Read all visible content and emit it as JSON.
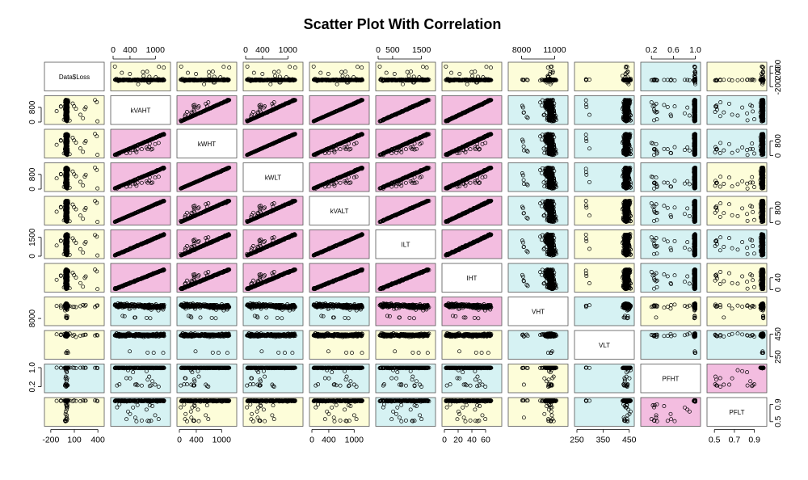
{
  "chart_data": {
    "type": "scatter",
    "title": "Scatter Plot With Correlation",
    "variables": [
      "Data$Loss",
      "kVAHT",
      "kWHT",
      "kWLT",
      "kVALT",
      "ILT",
      "IHT",
      "VHT",
      "VLT",
      "PFHT",
      "PFLT"
    ],
    "ranges": [
      [
        -250,
        450
      ],
      [
        0,
        1300
      ],
      [
        0,
        1300
      ],
      [
        0,
        1300
      ],
      [
        0,
        1300
      ],
      [
        0,
        1900
      ],
      [
        0,
        80
      ],
      [
        7000,
        12000
      ],
      [
        250,
        460
      ],
      [
        0.05,
        1.05
      ],
      [
        0.45,
        1.0
      ]
    ],
    "panel_colors": {
      "pink": "#f3bde0",
      "cyan": "#d6f2f3",
      "yellow": "#fdfdd9",
      "diag": "#ffffff"
    },
    "panel_fill": [
      [
        "diag",
        "yellow",
        "yellow",
        "yellow",
        "yellow",
        "yellow",
        "yellow",
        "yellow",
        "yellow",
        "cyan",
        "yellow"
      ],
      [
        "yellow",
        "diag",
        "pink",
        "pink",
        "pink",
        "pink",
        "pink",
        "cyan",
        "cyan",
        "cyan",
        "cyan"
      ],
      [
        "yellow",
        "pink",
        "diag",
        "pink",
        "pink",
        "pink",
        "pink",
        "cyan",
        "cyan",
        "cyan",
        "cyan"
      ],
      [
        "yellow",
        "pink",
        "pink",
        "diag",
        "pink",
        "pink",
        "pink",
        "cyan",
        "cyan",
        "cyan",
        "yellow"
      ],
      [
        "yellow",
        "pink",
        "pink",
        "pink",
        "diag",
        "pink",
        "pink",
        "cyan",
        "yellow",
        "cyan",
        "yellow"
      ],
      [
        "yellow",
        "pink",
        "pink",
        "pink",
        "pink",
        "diag",
        "pink",
        "cyan",
        "yellow",
        "cyan",
        "cyan"
      ],
      [
        "yellow",
        "pink",
        "pink",
        "pink",
        "pink",
        "pink",
        "diag",
        "cyan",
        "yellow",
        "cyan",
        "yellow"
      ],
      [
        "yellow",
        "cyan",
        "cyan",
        "cyan",
        "cyan",
        "pink",
        "pink",
        "diag",
        "cyan",
        "yellow",
        "yellow"
      ],
      [
        "yellow",
        "cyan",
        "cyan",
        "cyan",
        "yellow",
        "yellow",
        "yellow",
        "cyan",
        "diag",
        "cyan",
        "cyan"
      ],
      [
        "cyan",
        "cyan",
        "cyan",
        "cyan",
        "cyan",
        "cyan",
        "cyan",
        "yellow",
        "cyan",
        "diag",
        "pink"
      ],
      [
        "yellow",
        "cyan",
        "yellow",
        "yellow",
        "yellow",
        "cyan",
        "yellow",
        "yellow",
        "cyan",
        "pink",
        "diag"
      ]
    ],
    "top_axis": [
      {
        "column": 1,
        "ticks": [
          0,
          400,
          1000
        ],
        "labels": [
          "0",
          "400",
          "1000"
        ]
      },
      {
        "column": 3,
        "ticks": [
          0,
          400,
          1000
        ],
        "labels": [
          "0",
          "400",
          "1000"
        ]
      },
      {
        "column": 5,
        "ticks": [
          0,
          500,
          1500
        ],
        "labels": [
          "0",
          "500",
          "1500"
        ]
      },
      {
        "column": 7,
        "ticks": [
          8000,
          11000
        ],
        "labels": [
          "8000",
          "11000"
        ]
      },
      {
        "column": 9,
        "ticks": [
          0.2,
          0.6,
          1.0
        ],
        "labels": [
          "0.2",
          "0.6",
          "1.0"
        ]
      }
    ],
    "bottom_axis": [
      {
        "column": 0,
        "ticks": [
          -200,
          100,
          400
        ],
        "labels": [
          "-200",
          "100",
          "400"
        ]
      },
      {
        "column": 2,
        "ticks": [
          0,
          400,
          1000
        ],
        "labels": [
          "0",
          "400",
          "1000"
        ]
      },
      {
        "column": 4,
        "ticks": [
          0,
          400,
          1000
        ],
        "labels": [
          "0",
          "400",
          "1000"
        ]
      },
      {
        "column": 6,
        "ticks": [
          0,
          20,
          40,
          60
        ],
        "labels": [
          "0",
          "20",
          "40",
          "60"
        ]
      },
      {
        "column": 8,
        "ticks": [
          250,
          350,
          450
        ],
        "labels": [
          "250",
          "350",
          "450"
        ]
      },
      {
        "column": 10,
        "ticks": [
          0.5,
          0.7,
          0.9
        ],
        "labels": [
          "0.5",
          "0.7",
          "0.9"
        ]
      }
    ],
    "left_axis": [
      {
        "row": 1,
        "ticks": [
          0,
          800
        ],
        "labels": [
          "0",
          "800"
        ]
      },
      {
        "row": 3,
        "ticks": [
          0,
          800
        ],
        "labels": [
          "0",
          "800"
        ]
      },
      {
        "row": 5,
        "ticks": [
          0,
          1500
        ],
        "labels": [
          "0",
          "1500"
        ]
      },
      {
        "row": 7,
        "ticks": [
          8000
        ],
        "labels": [
          "8000"
        ]
      },
      {
        "row": 9,
        "ticks": [
          0.2,
          1.0
        ],
        "labels": [
          "0.2",
          "1.0"
        ]
      }
    ],
    "right_axis": [
      {
        "row": 0,
        "ticks": [
          -200,
          200,
          400
        ],
        "labels": [
          "-200",
          "200",
          "400"
        ]
      },
      {
        "row": 2,
        "ticks": [
          0,
          800
        ],
        "labels": [
          "0",
          "800"
        ]
      },
      {
        "row": 4,
        "ticks": [
          0,
          800
        ],
        "labels": [
          "0",
          "800"
        ]
      },
      {
        "row": 6,
        "ticks": [
          0,
          40
        ],
        "labels": [
          "0",
          "40"
        ]
      },
      {
        "row": 8,
        "ticks": [
          250,
          450
        ],
        "labels": [
          "250",
          "450"
        ]
      },
      {
        "row": 10,
        "ticks": [
          0.5,
          0.9
        ],
        "labels": [
          "0.5",
          "0.9"
        ]
      }
    ],
    "grid": false,
    "legend": "none"
  }
}
